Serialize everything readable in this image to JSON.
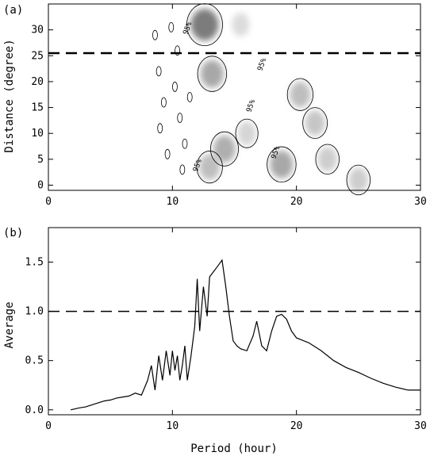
{
  "chart_data": [
    {
      "panel": "(a)",
      "type": "heatmap",
      "ylabel": "Distance (degree)",
      "xlabel": "",
      "xlim": [
        0,
        30
      ],
      "ylim": [
        -1,
        35
      ],
      "xticks": [
        "0",
        "10",
        "20",
        "30"
      ],
      "yticks": [
        "0",
        "5",
        "10",
        "15",
        "20",
        "25",
        "30"
      ],
      "grid": false,
      "reference_line": {
        "y": 25.5,
        "style": "dashed"
      },
      "contour_labels": [
        {
          "text": "95%",
          "x": 11.2,
          "y": 29
        },
        {
          "text": "95%",
          "x": 17.2,
          "y": 22
        },
        {
          "text": "95%",
          "x": 16.3,
          "y": 14
        },
        {
          "text": "95%",
          "x": 12.0,
          "y": 2.5
        },
        {
          "text": "95%",
          "x": 18.3,
          "y": 5
        }
      ],
      "regions": [
        {
          "x": 12.6,
          "y": 31.0,
          "intensity": 0.75
        },
        {
          "x": 13.2,
          "y": 21.5,
          "intensity": 0.45
        },
        {
          "x": 14.2,
          "y": 7.0,
          "intensity": 0.4
        },
        {
          "x": 13.0,
          "y": 3.5,
          "intensity": 0.3
        },
        {
          "x": 18.8,
          "y": 4.0,
          "intensity": 0.45
        },
        {
          "x": 20.3,
          "y": 17.5,
          "intensity": 0.3
        },
        {
          "x": 21.5,
          "y": 12.0,
          "intensity": 0.25
        },
        {
          "x": 22.5,
          "y": 5.0,
          "intensity": 0.2
        },
        {
          "x": 25.0,
          "y": 1.0,
          "intensity": 0.2
        },
        {
          "x": 16.0,
          "y": 10.0,
          "intensity": 0.15
        },
        {
          "x": 15.5,
          "y": 31.0,
          "intensity": 0.1
        }
      ]
    },
    {
      "panel": "(b)",
      "type": "line",
      "xlabel": "Period (hour)",
      "ylabel": "Average",
      "xlim": [
        0,
        30
      ],
      "ylim": [
        -0.05,
        1.85
      ],
      "xticks": [
        "0",
        "10",
        "20",
        "30"
      ],
      "yticks": [
        "0.0",
        "0.5",
        "1.0",
        "1.5"
      ],
      "grid": false,
      "reference_line": {
        "y": 1.0,
        "style": "dashed"
      },
      "series": [
        {
          "x": [
            1.8,
            2.5,
            3.0,
            3.5,
            4.0,
            4.5,
            5.0,
            5.5,
            6.0,
            6.5,
            7.0,
            7.5,
            8.0,
            8.3,
            8.6,
            8.9,
            9.2,
            9.5,
            9.8,
            10.0,
            10.2,
            10.4,
            10.6,
            10.8,
            11.0,
            11.2,
            11.5,
            11.8,
            12.0,
            12.2,
            12.5,
            12.8,
            13.0,
            13.3,
            13.6,
            14.0,
            14.3,
            14.6,
            14.9,
            15.2,
            15.5,
            16.0,
            16.5,
            16.8,
            17.2,
            17.6,
            18.0,
            18.4,
            18.8,
            19.2,
            19.6,
            20.0,
            21.0,
            22.0,
            23.0,
            24.0,
            25.0,
            26.0,
            27.0,
            28.0,
            29.0,
            30.0
          ],
          "y": [
            0.0,
            0.02,
            0.03,
            0.05,
            0.07,
            0.09,
            0.1,
            0.12,
            0.13,
            0.14,
            0.17,
            0.15,
            0.3,
            0.45,
            0.2,
            0.55,
            0.3,
            0.6,
            0.35,
            0.6,
            0.4,
            0.55,
            0.3,
            0.45,
            0.65,
            0.3,
            0.55,
            0.85,
            1.33,
            0.8,
            1.25,
            0.95,
            1.35,
            1.4,
            1.45,
            1.52,
            1.25,
            0.95,
            0.7,
            0.65,
            0.62,
            0.6,
            0.75,
            0.9,
            0.65,
            0.6,
            0.8,
            0.95,
            0.97,
            0.92,
            0.8,
            0.73,
            0.68,
            0.6,
            0.5,
            0.43,
            0.38,
            0.32,
            0.27,
            0.23,
            0.2,
            0.2
          ]
        }
      ]
    }
  ]
}
